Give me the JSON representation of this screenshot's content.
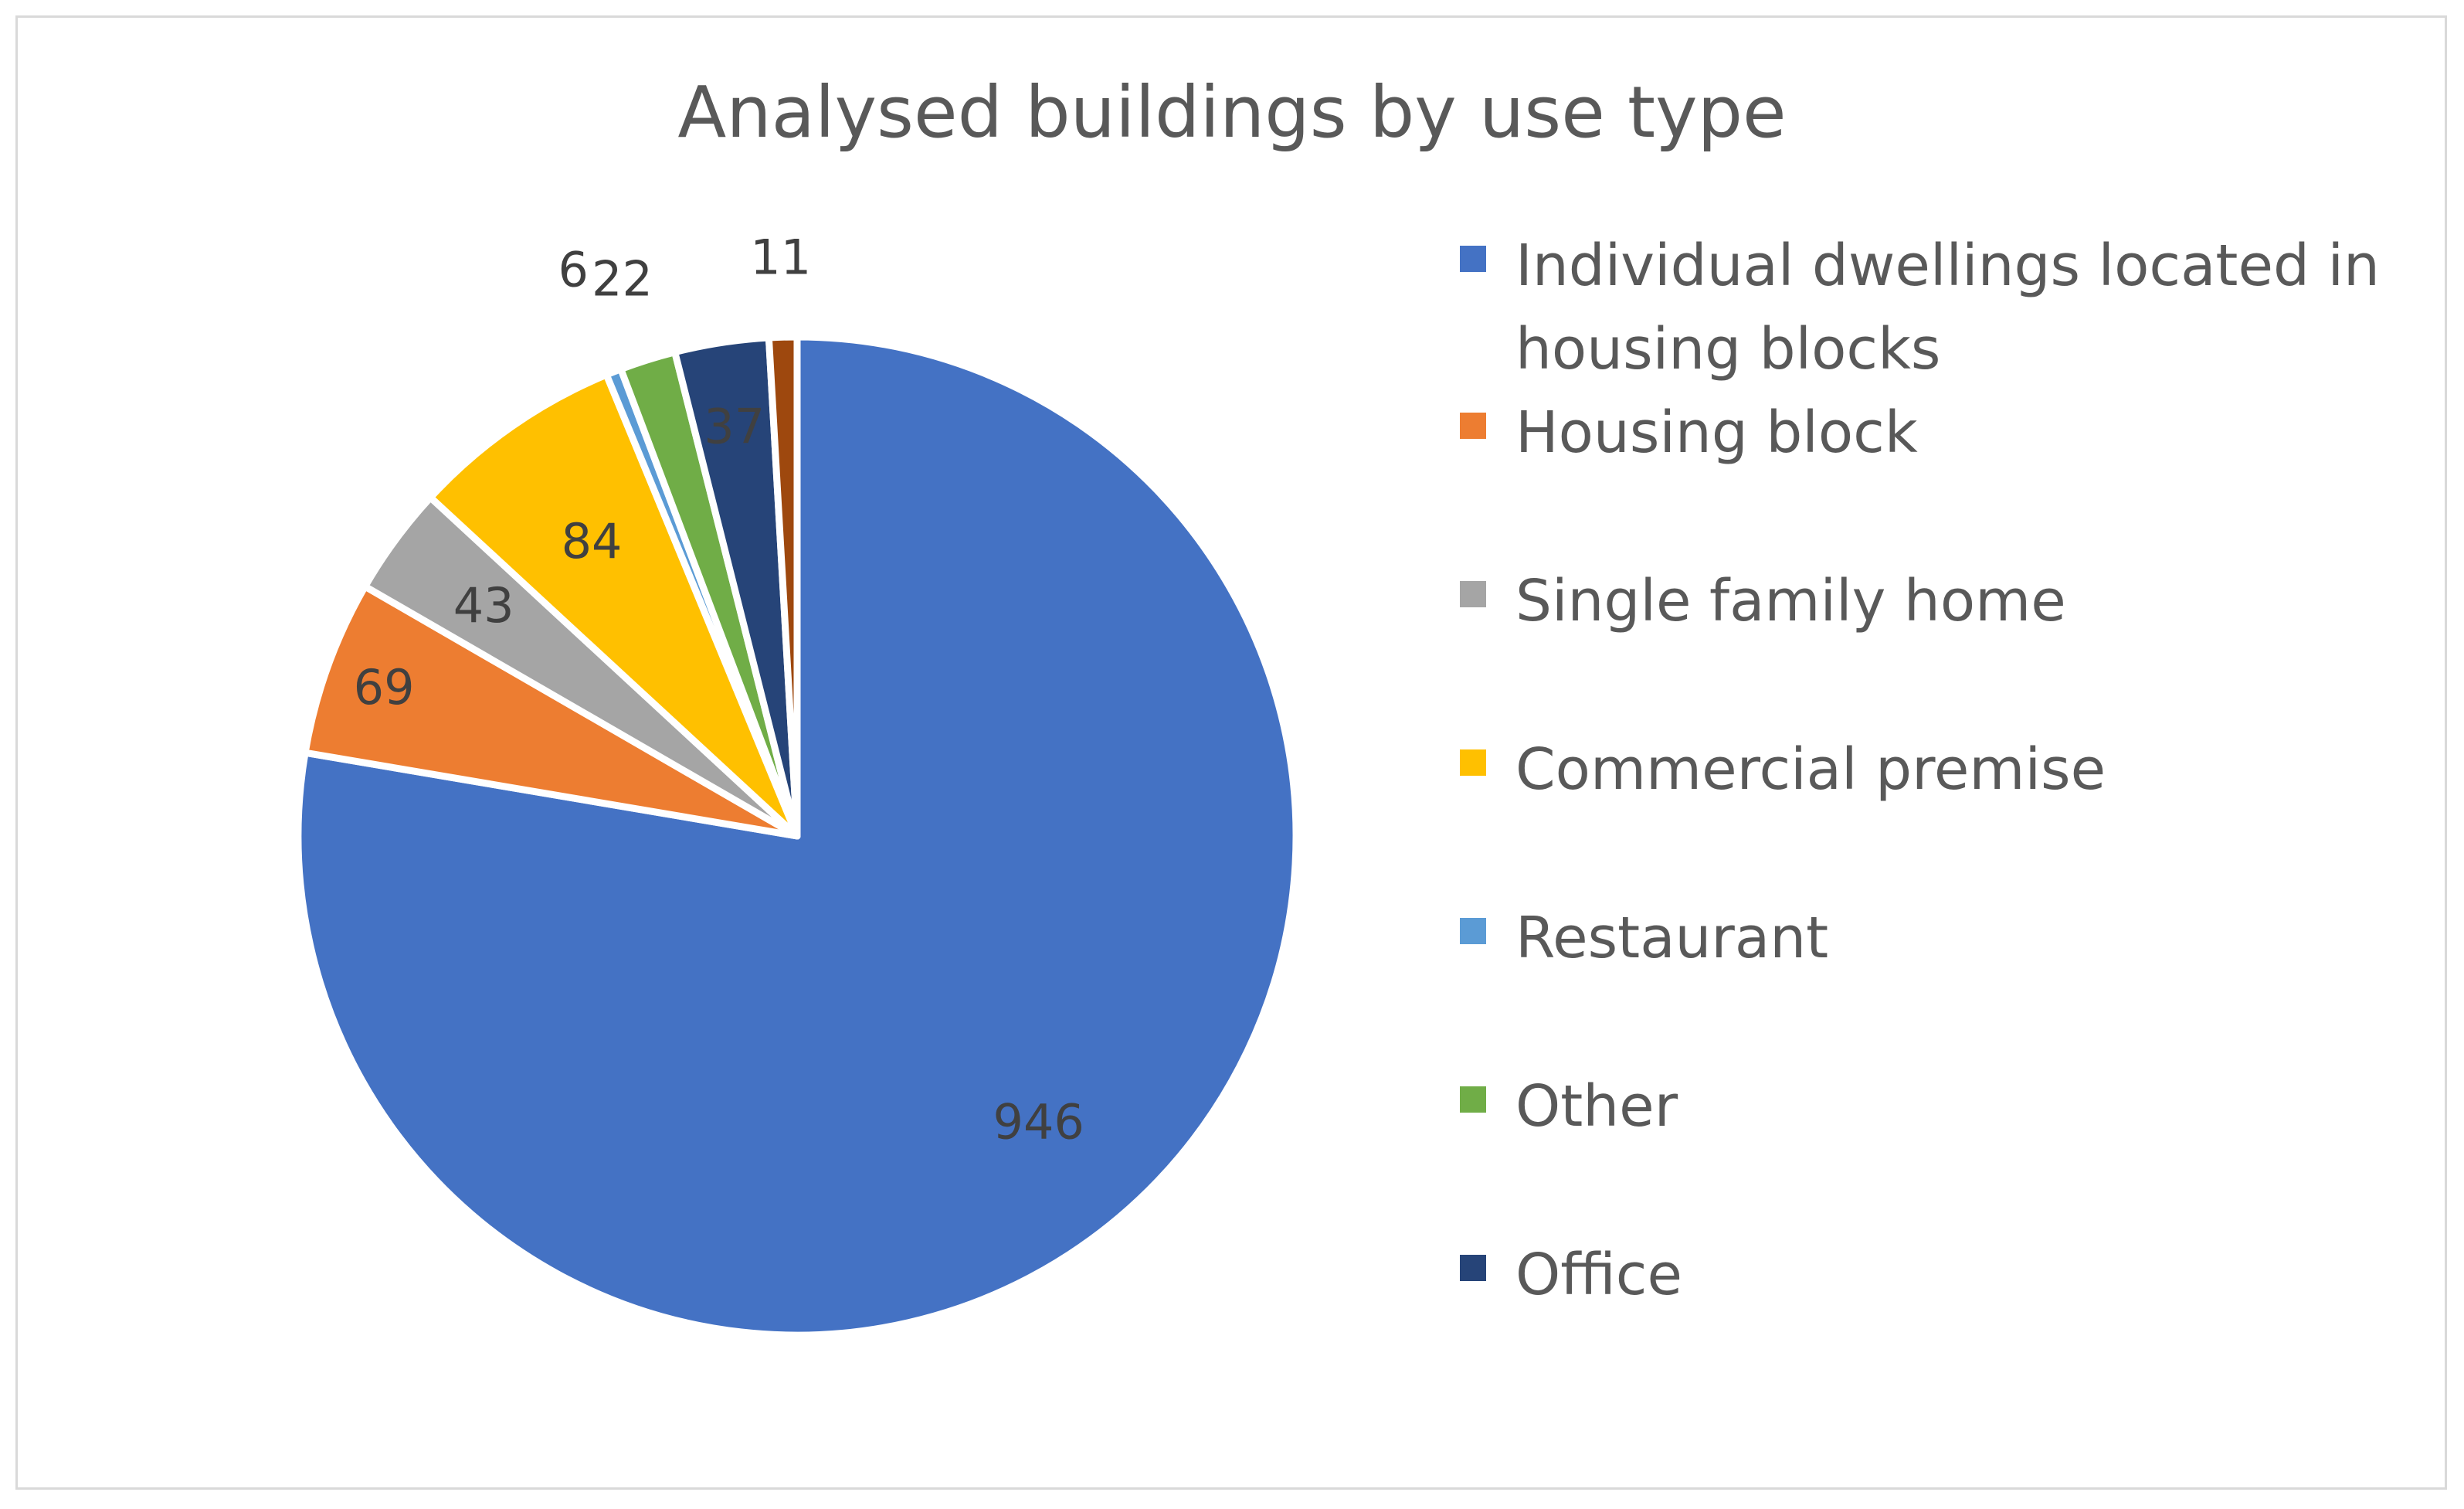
{
  "chart_data": {
    "type": "pie",
    "title": "Analysed buildings by use type",
    "legend_position": "right",
    "slices": [
      {
        "label": "Individual dwellings located in housing blocks",
        "value": 946,
        "data_label": "946",
        "color": "#4472C4"
      },
      {
        "label": "Housing block",
        "value": 69,
        "data_label": "69",
        "color": "#ED7D31"
      },
      {
        "label": "Single family home",
        "value": 43,
        "data_label": "43",
        "color": "#A5A5A5"
      },
      {
        "label": "Commercial premise",
        "value": 84,
        "data_label": "84",
        "color": "#FFC000"
      },
      {
        "label": "Restaurant",
        "value": 6,
        "data_label": "6",
        "color": "#5B9BD5"
      },
      {
        "label": "Other",
        "value": 22,
        "data_label": "22",
        "color": "#70AD47"
      },
      {
        "label": "Office",
        "value": 37,
        "data_label": "37",
        "color": "#264478"
      },
      {
        "label": "",
        "value": 11,
        "data_label": "11",
        "color": "#9E480E"
      }
    ]
  }
}
